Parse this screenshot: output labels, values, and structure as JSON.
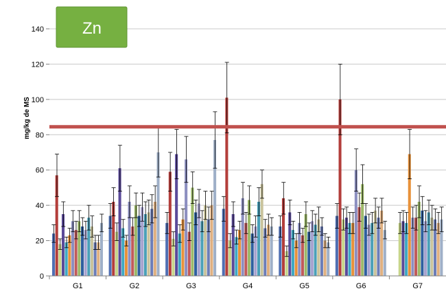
{
  "chart_data": {
    "type": "bar",
    "title": "Zn",
    "ylabel": "mg/kg de MS",
    "xlabel": "",
    "ylim": [
      0,
      140
    ],
    "yticks": [
      0,
      20,
      40,
      60,
      80,
      100,
      120,
      140
    ],
    "grid": true,
    "legend": "none",
    "categories": [
      "G1",
      "G2",
      "G3",
      "G4",
      "G5",
      "G6",
      "G7"
    ],
    "threshold": {
      "value": 84.5,
      "color": "#c0504d"
    },
    "badge_color": "#76b041",
    "groups": [
      {
        "name": "G1",
        "values": [
          24,
          57,
          18,
          35,
          19,
          23,
          31,
          26,
          31,
          28,
          26,
          33,
          28,
          19,
          19,
          30
        ],
        "errors": [
          5,
          12,
          3,
          7,
          3,
          4,
          6,
          5,
          6,
          5,
          5,
          7,
          6,
          4,
          4,
          5
        ]
      },
      {
        "name": "G2",
        "values": [
          34,
          42,
          25,
          61,
          27,
          20,
          42,
          28,
          40,
          34,
          39,
          35,
          36,
          38,
          42,
          70
        ],
        "errors": [
          7,
          8,
          5,
          13,
          5,
          3,
          9,
          5,
          7,
          6,
          8,
          7,
          7,
          8,
          9,
          14
        ]
      },
      {
        "name": "G3",
        "values": [
          30,
          59,
          21,
          69,
          24,
          32,
          66,
          25,
          50,
          36,
          41,
          31,
          40,
          32,
          40,
          77
        ],
        "errors": [
          6,
          11,
          4,
          14,
          5,
          6,
          13,
          5,
          9,
          7,
          8,
          6,
          8,
          7,
          8,
          16
        ]
      },
      {
        "name": "G4",
        "values": [
          38,
          101,
          20,
          35,
          22,
          26,
          44,
          30,
          43,
          24,
          28,
          42,
          52,
          27,
          29,
          28
        ],
        "errors": [
          7,
          20,
          4,
          7,
          4,
          5,
          9,
          6,
          8,
          5,
          6,
          8,
          8,
          5,
          6,
          5
        ]
      },
      {
        "name": "G5",
        "values": [
          28,
          44,
          14,
          36,
          26,
          20,
          30,
          23,
          35,
          25,
          31,
          29,
          32,
          28,
          20,
          19
        ],
        "errors": [
          6,
          9,
          3,
          7,
          5,
          4,
          6,
          4,
          7,
          5,
          6,
          6,
          7,
          5,
          4,
          3
        ]
      },
      {
        "name": "G6",
        "values": [
          34,
          100,
          32,
          33,
          30,
          30,
          60,
          39,
          52,
          34,
          29,
          30,
          37,
          33,
          37,
          26
        ],
        "errors": [
          7,
          20,
          6,
          6,
          6,
          6,
          12,
          8,
          11,
          7,
          6,
          6,
          7,
          6,
          7,
          5
        ]
      },
      {
        "name": "G7",
        "values": [
          0,
          0,
          30,
          31,
          30,
          69,
          33,
          33,
          42,
          37,
          31,
          36,
          33,
          32,
          30,
          32
        ],
        "errors": [
          0,
          0,
          6,
          6,
          6,
          14,
          6,
          7,
          9,
          8,
          6,
          7,
          7,
          6,
          6,
          7
        ]
      }
    ]
  },
  "series_colors": [
    "#4f6fb3",
    "#b33e3b",
    "#c8d68a",
    "#5b4a99",
    "#3fa9c4",
    "#e8913a",
    "#8c8fc0",
    "#c15a5a",
    "#9db96a",
    "#2e5f9f",
    "#a7a3cf",
    "#4aa0b8",
    "#c9c39c",
    "#6c7db8",
    "#e0b080",
    "#9fb0c8"
  ]
}
